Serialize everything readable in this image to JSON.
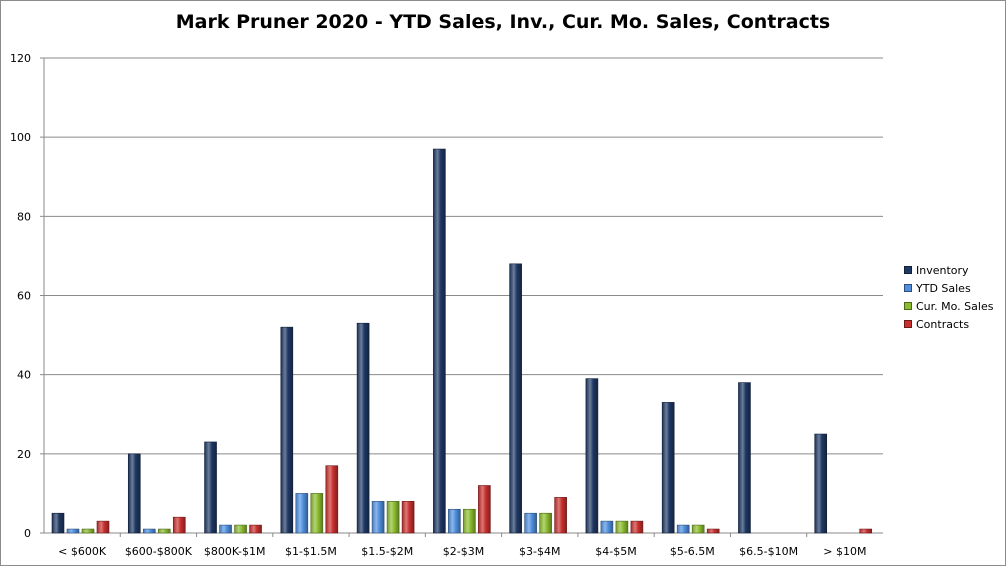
{
  "chart_data": {
    "type": "bar",
    "title": "Mark Pruner 2020 - YTD Sales, Inv., Cur. Mo. Sales, Contracts",
    "xlabel": "",
    "ylabel": "",
    "ylim": [
      0,
      120
    ],
    "yticks": [
      0,
      20,
      40,
      60,
      80,
      100,
      120
    ],
    "grid": true,
    "legend_position": "right",
    "categories": [
      "< $600K",
      "$600-$800K",
      "$800K-$1M",
      "$1-$1.5M",
      "$1.5-$2M",
      "$2-$3M",
      "$3-$4M",
      "$4-$5M",
      "$5-6.5M",
      "$6.5-$10M",
      "> $10M"
    ],
    "series": [
      {
        "name": "Inventory",
        "color": "#1f3864",
        "values": [
          5,
          20,
          23,
          52,
          53,
          97,
          68,
          39,
          33,
          38,
          25
        ]
      },
      {
        "name": "YTD Sales",
        "color": "#4f8fde",
        "values": [
          1,
          1,
          2,
          10,
          8,
          6,
          5,
          3,
          2,
          0,
          0
        ]
      },
      {
        "name": "Cur. Mo. Sales",
        "color": "#8bbb2f",
        "values": [
          1,
          1,
          2,
          10,
          8,
          6,
          5,
          3,
          2,
          0,
          0
        ]
      },
      {
        "name": "Contracts",
        "color": "#c8302e",
        "values": [
          3,
          4,
          2,
          17,
          8,
          12,
          9,
          3,
          1,
          0,
          1
        ]
      }
    ]
  }
}
